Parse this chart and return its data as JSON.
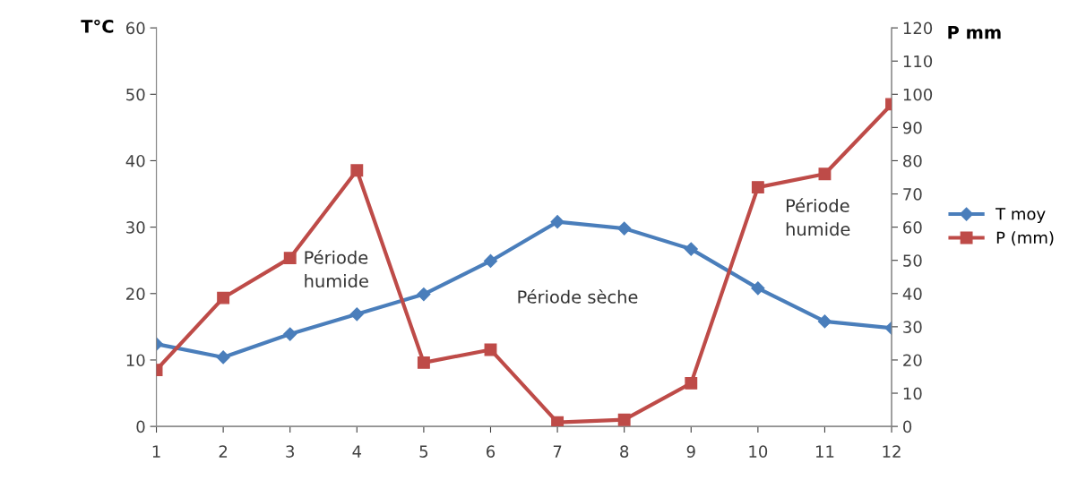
{
  "chart_data": {
    "type": "line",
    "ylabel": "T°C",
    "y2label": "P mm",
    "x": [
      1,
      2,
      3,
      4,
      5,
      6,
      7,
      8,
      9,
      10,
      11,
      12
    ],
    "series": [
      {
        "name": "T moy",
        "color": "#4a7ebb",
        "marker": "diamond",
        "values": [
          12.4,
          10.4,
          13.9,
          16.9,
          19.9,
          24.9,
          30.8,
          29.8,
          26.7,
          20.8,
          15.8,
          14.8
        ]
      },
      {
        "name": "P (mm)",
        "color": "#be4b48",
        "marker": "square",
        "axis": "y2",
        "values": [
          17,
          38.7,
          50.7,
          77.1,
          19.2,
          23.1,
          1.2,
          2,
          13,
          72,
          76,
          97
        ]
      }
    ],
    "xlim": [
      1,
      12
    ],
    "xticks": [
      1,
      2,
      3,
      4,
      5,
      6,
      7,
      8,
      9,
      10,
      11,
      12
    ],
    "ylim": [
      0,
      60
    ],
    "yticks": [
      0,
      10,
      20,
      30,
      40,
      50,
      60
    ],
    "y2lim": [
      0,
      120
    ],
    "y2ticks": [
      0,
      10,
      20,
      30,
      40,
      50,
      60,
      70,
      80,
      90,
      100,
      110,
      120
    ],
    "annotations": [
      "Période\nhumide",
      "Période sèche",
      "Période\nhumide"
    ],
    "legend": "right",
    "grid": false,
    "line_style": "solid"
  }
}
